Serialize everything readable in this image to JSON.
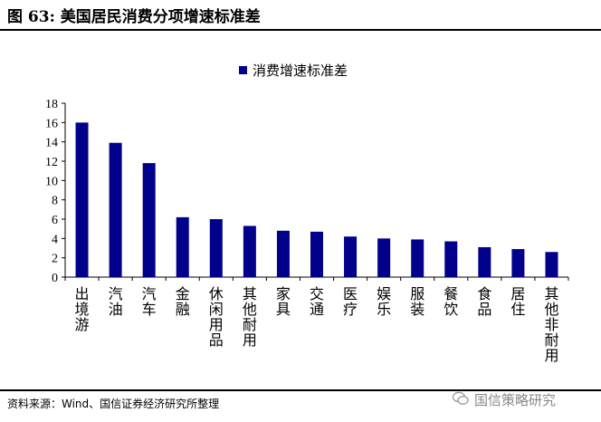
{
  "header": {
    "title": "图 63: 美国居民消费分项增速标准差"
  },
  "footer": {
    "source": "资料来源：Wind、国信证券经济研究所整理",
    "watermark": "国信策略研究"
  },
  "chart_data": {
    "type": "bar",
    "title": "",
    "legend": {
      "entries": [
        "消费增速标准差"
      ],
      "position": "top-center"
    },
    "categories": [
      "出境游",
      "汽油",
      "汽车",
      "金融",
      "休闲用品",
      "其他耐用",
      "家具",
      "交通",
      "医疗",
      "娱乐",
      "服装",
      "餐饮",
      "食品",
      "居住",
      "其他非耐用"
    ],
    "series": [
      {
        "name": "消费增速标准差",
        "values": [
          16.0,
          13.9,
          11.8,
          6.2,
          6.0,
          5.3,
          4.8,
          4.7,
          4.2,
          4.0,
          3.9,
          3.7,
          3.1,
          2.9,
          2.6
        ],
        "color": "#00008b"
      }
    ],
    "ylim": [
      0,
      18
    ],
    "yticks": [
      0,
      2,
      4,
      6,
      8,
      10,
      12,
      14,
      16,
      18
    ],
    "xlabel": "",
    "ylabel": "",
    "grid": false
  }
}
